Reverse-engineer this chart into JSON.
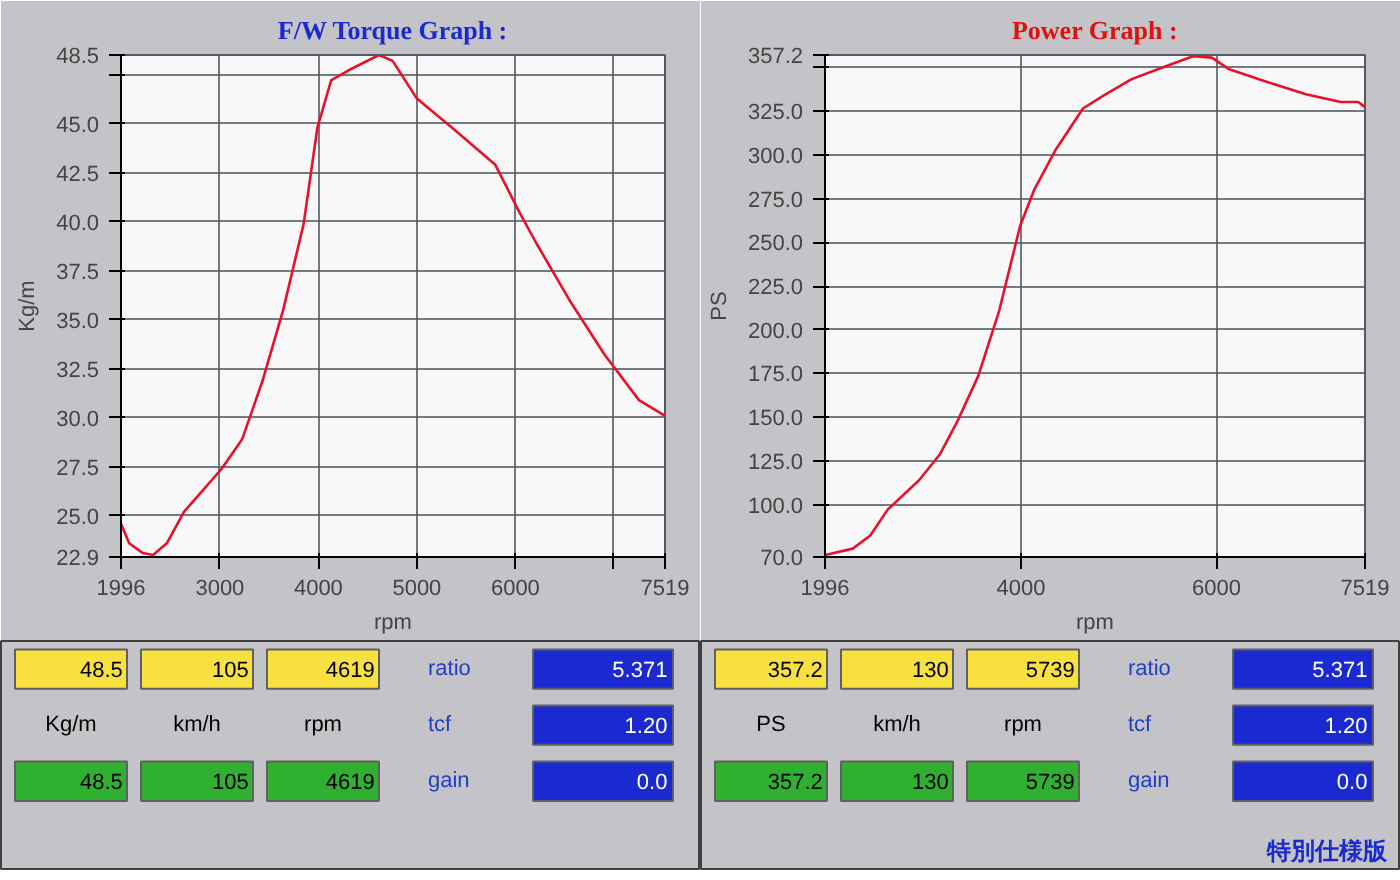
{
  "chart_data": [
    {
      "type": "line",
      "title": "F/W Torque Graph :",
      "xlabel": "rpm",
      "ylabel": "Kg/m",
      "grid": true,
      "x": [
        1996,
        2079,
        2218,
        2322,
        2461,
        2635,
        2809,
        3018,
        3226,
        3434,
        3643,
        3851,
        3990,
        4129,
        4337,
        4615,
        4754,
        4997,
        5379,
        5796,
        6039,
        6213,
        6561,
        6908,
        7255,
        7519
      ],
      "series": [
        {
          "color": "#e8102a",
          "values": [
            24.6,
            23.6,
            23.1,
            23.0,
            23.6,
            25.2,
            26.2,
            27.4,
            28.9,
            31.9,
            35.5,
            39.9,
            44.8,
            47.2,
            47.8,
            48.5,
            48.2,
            46.3,
            44.7,
            42.9,
            40.5,
            38.9,
            35.9,
            33.2,
            30.9,
            30.1
          ]
        }
      ],
      "xlim": [
        1996,
        7519
      ],
      "xticks": [
        1996,
        3000,
        4000,
        5000,
        6000,
        {
          "value": 7000,
          "label": null
        },
        7519
      ],
      "ylim": [
        22.9,
        48.5
      ],
      "yticks": [
        22.9,
        {
          "value": 25,
          "label": "25.0"
        },
        27.5,
        {
          "value": 30,
          "label": "30.0"
        },
        32.5,
        {
          "value": 35,
          "label": "35.0"
        },
        37.5,
        {
          "value": 40,
          "label": "40.0"
        },
        42.5,
        {
          "value": 45,
          "label": "45.0"
        },
        {
          "value": 47.5,
          "label": null
        },
        48.5
      ],
      "annotations": [
        "48.5",
        "105",
        "4619",
        "ratio",
        "5.371",
        "Kg/m",
        "km/h",
        "rpm",
        "tcf",
        "1.20",
        "48.5",
        "105",
        "4619",
        "gain",
        "0.0"
      ]
    },
    {
      "type": "line",
      "title": "Power Graph :",
      "xlabel": "rpm",
      "ylabel": "PS",
      "grid": true,
      "x": [
        1996,
        2281,
        2459,
        2637,
        2958,
        3172,
        3350,
        3564,
        3778,
        3992,
        4135,
        4349,
        4634,
        4848,
        5133,
        5489,
        5760,
        5953,
        6131,
        6488,
        6915,
        7271,
        7450,
        7519
      ],
      "series": [
        {
          "color": "#e8102a",
          "values": [
            71.1,
            74.8,
            82.3,
            97.1,
            113.9,
            128.8,
            147.6,
            173.6,
            211.0,
            259.5,
            280.0,
            302.4,
            326.6,
            334.1,
            343.4,
            350.9,
            356.5,
            355.7,
            349.0,
            342.3,
            334.8,
            330.3,
            330.3,
            327.4
          ]
        }
      ],
      "xlim": [
        1996,
        7519
      ],
      "xticks": [
        1996,
        4000,
        6000,
        7519
      ],
      "ylim": [
        70,
        357.2
      ],
      "yticks": [
        {
          "value": 70,
          "label": "70.0"
        },
        {
          "value": 100,
          "label": "100.0"
        },
        {
          "value": 125,
          "label": "125.0"
        },
        {
          "value": 150,
          "label": "150.0"
        },
        {
          "value": 175,
          "label": "175.0"
        },
        {
          "value": 200,
          "label": "200.0"
        },
        {
          "value": 225,
          "label": "225.0"
        },
        {
          "value": 250,
          "label": "250.0"
        },
        {
          "value": 275,
          "label": "275.0"
        },
        {
          "value": 300,
          "label": "300.0"
        },
        {
          "value": 325,
          "label": "325.0"
        },
        {
          "value": 350,
          "label": null
        },
        357.2
      ],
      "annotations": [
        "357.2",
        "130",
        "5739",
        "ratio",
        "5.371",
        "PS",
        "km/h",
        "rpm",
        "tcf",
        "1.20",
        "357.2",
        "130",
        "5739",
        "gain",
        "0.0",
        "特別仕様版"
      ]
    }
  ]
}
